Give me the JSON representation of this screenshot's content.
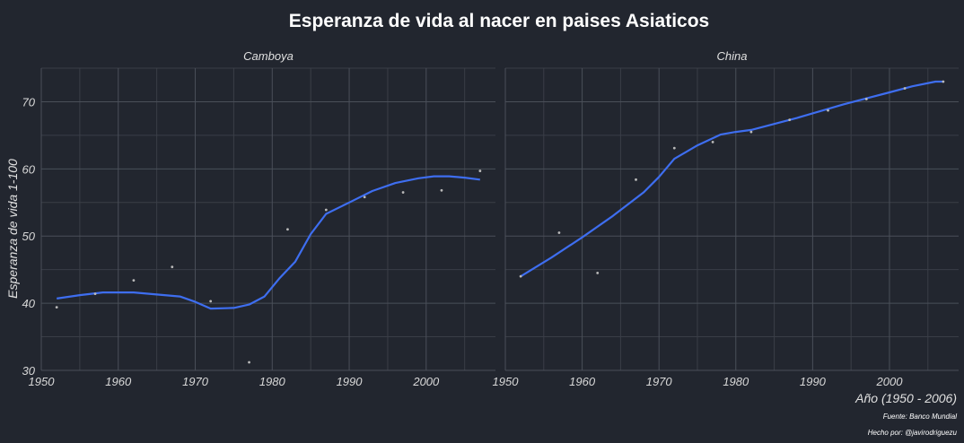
{
  "chart_data": {
    "type": "scatter",
    "title": "Esperanza de vida al nacer en paises Asiaticos",
    "xlabel": "Año (1950 - 2006)",
    "ylabel": "Esperanza de vida 1-100",
    "caption_source": "Fuente: Banco Mundial",
    "caption_author": "Hecho por: @javirodriguezu",
    "xlim": [
      1950,
      2009
    ],
    "ylim": [
      30,
      75
    ],
    "x_ticks": [
      1950,
      1960,
      1970,
      1980,
      1990,
      2000
    ],
    "y_ticks": [
      30,
      40,
      50,
      60,
      70
    ],
    "grid": true,
    "panels": [
      {
        "name": "Camboya",
        "points": [
          [
            1952,
            39.4
          ],
          [
            1957,
            41.4
          ],
          [
            1962,
            43.4
          ],
          [
            1967,
            45.4
          ],
          [
            1972,
            40.3
          ],
          [
            1977,
            31.2
          ],
          [
            1982,
            51.0
          ],
          [
            1987,
            53.9
          ],
          [
            1992,
            55.8
          ],
          [
            1997,
            56.5
          ],
          [
            2002,
            56.8
          ],
          [
            2007,
            59.7
          ]
        ],
        "smooth": [
          [
            1952,
            40.7
          ],
          [
            1955,
            41.2
          ],
          [
            1958,
            41.6
          ],
          [
            1962,
            41.6
          ],
          [
            1965,
            41.3
          ],
          [
            1968,
            41.0
          ],
          [
            1970,
            40.2
          ],
          [
            1972,
            39.2
          ],
          [
            1975,
            39.3
          ],
          [
            1977,
            39.8
          ],
          [
            1979,
            41.0
          ],
          [
            1981,
            43.8
          ],
          [
            1983,
            46.2
          ],
          [
            1985,
            50.3
          ],
          [
            1987,
            53.3
          ],
          [
            1990,
            55.0
          ],
          [
            1993,
            56.7
          ],
          [
            1996,
            57.9
          ],
          [
            1999,
            58.6
          ],
          [
            2001,
            58.9
          ],
          [
            2003,
            58.9
          ],
          [
            2005,
            58.7
          ],
          [
            2007,
            58.4
          ]
        ]
      },
      {
        "name": "China",
        "points": [
          [
            1952,
            44.0
          ],
          [
            1957,
            50.5
          ],
          [
            1962,
            44.5
          ],
          [
            1967,
            58.4
          ],
          [
            1972,
            63.1
          ],
          [
            1977,
            64.0
          ],
          [
            1982,
            65.5
          ],
          [
            1987,
            67.3
          ],
          [
            1992,
            68.7
          ],
          [
            1997,
            70.4
          ],
          [
            2002,
            72.0
          ],
          [
            2007,
            73.0
          ]
        ],
        "smooth": [
          [
            1952,
            44.0
          ],
          [
            1956,
            46.8
          ],
          [
            1960,
            49.8
          ],
          [
            1964,
            53.0
          ],
          [
            1968,
            56.5
          ],
          [
            1970,
            58.8
          ],
          [
            1972,
            61.5
          ],
          [
            1975,
            63.5
          ],
          [
            1978,
            65.1
          ],
          [
            1980,
            65.5
          ],
          [
            1982,
            65.8
          ],
          [
            1985,
            66.7
          ],
          [
            1988,
            67.6
          ],
          [
            1991,
            68.6
          ],
          [
            1994,
            69.6
          ],
          [
            1997,
            70.5
          ],
          [
            2000,
            71.4
          ],
          [
            2003,
            72.3
          ],
          [
            2006,
            73.0
          ],
          [
            2007,
            73.0
          ]
        ]
      }
    ]
  }
}
